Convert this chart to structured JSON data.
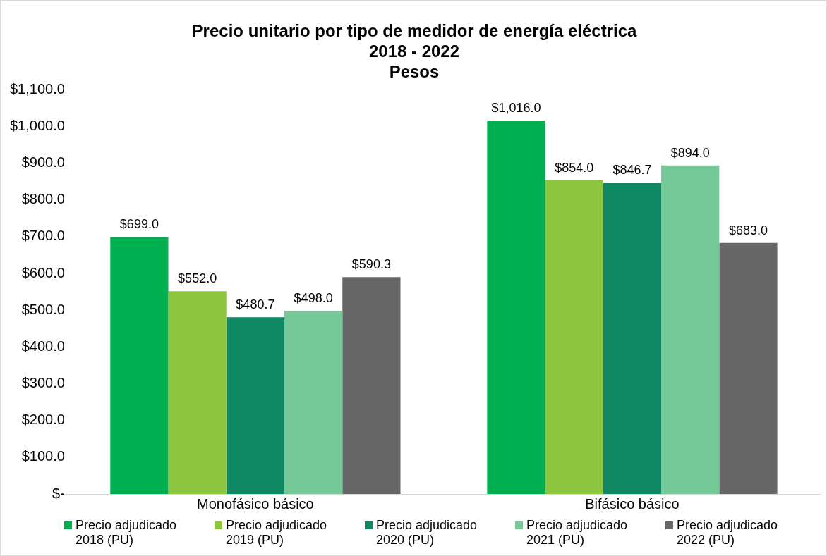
{
  "chart_data": {
    "type": "bar",
    "title": "Precio unitario por tipo de medidor de energía eléctrica\n2018 - 2022\nPesos",
    "categories": [
      "Monofásico básico",
      "Bifásico básico"
    ],
    "series": [
      {
        "name": "Precio adjudicado 2018 (PU)",
        "color": "#00b050",
        "values": [
          699.0,
          1016.0
        ],
        "value_labels": [
          "$699.0",
          "$1,016.0"
        ]
      },
      {
        "name": "Precio adjudicado 2019 (PU)",
        "color": "#8dc63f",
        "values": [
          552.0,
          854.0
        ],
        "value_labels": [
          "$552.0",
          "$854.0"
        ]
      },
      {
        "name": "Precio adjudicado 2020 (PU)",
        "color": "#0e8762",
        "values": [
          480.7,
          846.7
        ],
        "value_labels": [
          "$480.7",
          "$846.7"
        ]
      },
      {
        "name": "Precio adjudicado 2021 (PU)",
        "color": "#75c998",
        "values": [
          498.0,
          894.0
        ],
        "value_labels": [
          "$498.0",
          "$894.0"
        ]
      },
      {
        "name": "Precio adjudicado 2022 (PU)",
        "color": "#666666",
        "values": [
          590.3,
          683.0
        ],
        "value_labels": [
          "$590.3",
          "$683.0"
        ]
      }
    ],
    "ylim": [
      0,
      1100
    ],
    "yticks": [
      {
        "value": 0,
        "label": "$-"
      },
      {
        "value": 100,
        "label": "$100.0"
      },
      {
        "value": 200,
        "label": "$200.0"
      },
      {
        "value": 300,
        "label": "$300.0"
      },
      {
        "value": 400,
        "label": "$400.0"
      },
      {
        "value": 500,
        "label": "$500.0"
      },
      {
        "value": 600,
        "label": "$600.0"
      },
      {
        "value": 700,
        "label": "$700.0"
      },
      {
        "value": 800,
        "label": "$800.0"
      },
      {
        "value": 900,
        "label": "$900.0"
      },
      {
        "value": 1000,
        "label": "$1,000.0"
      },
      {
        "value": 1100,
        "label": "$1,100.0"
      }
    ],
    "grid": false,
    "legend": "bottom"
  }
}
